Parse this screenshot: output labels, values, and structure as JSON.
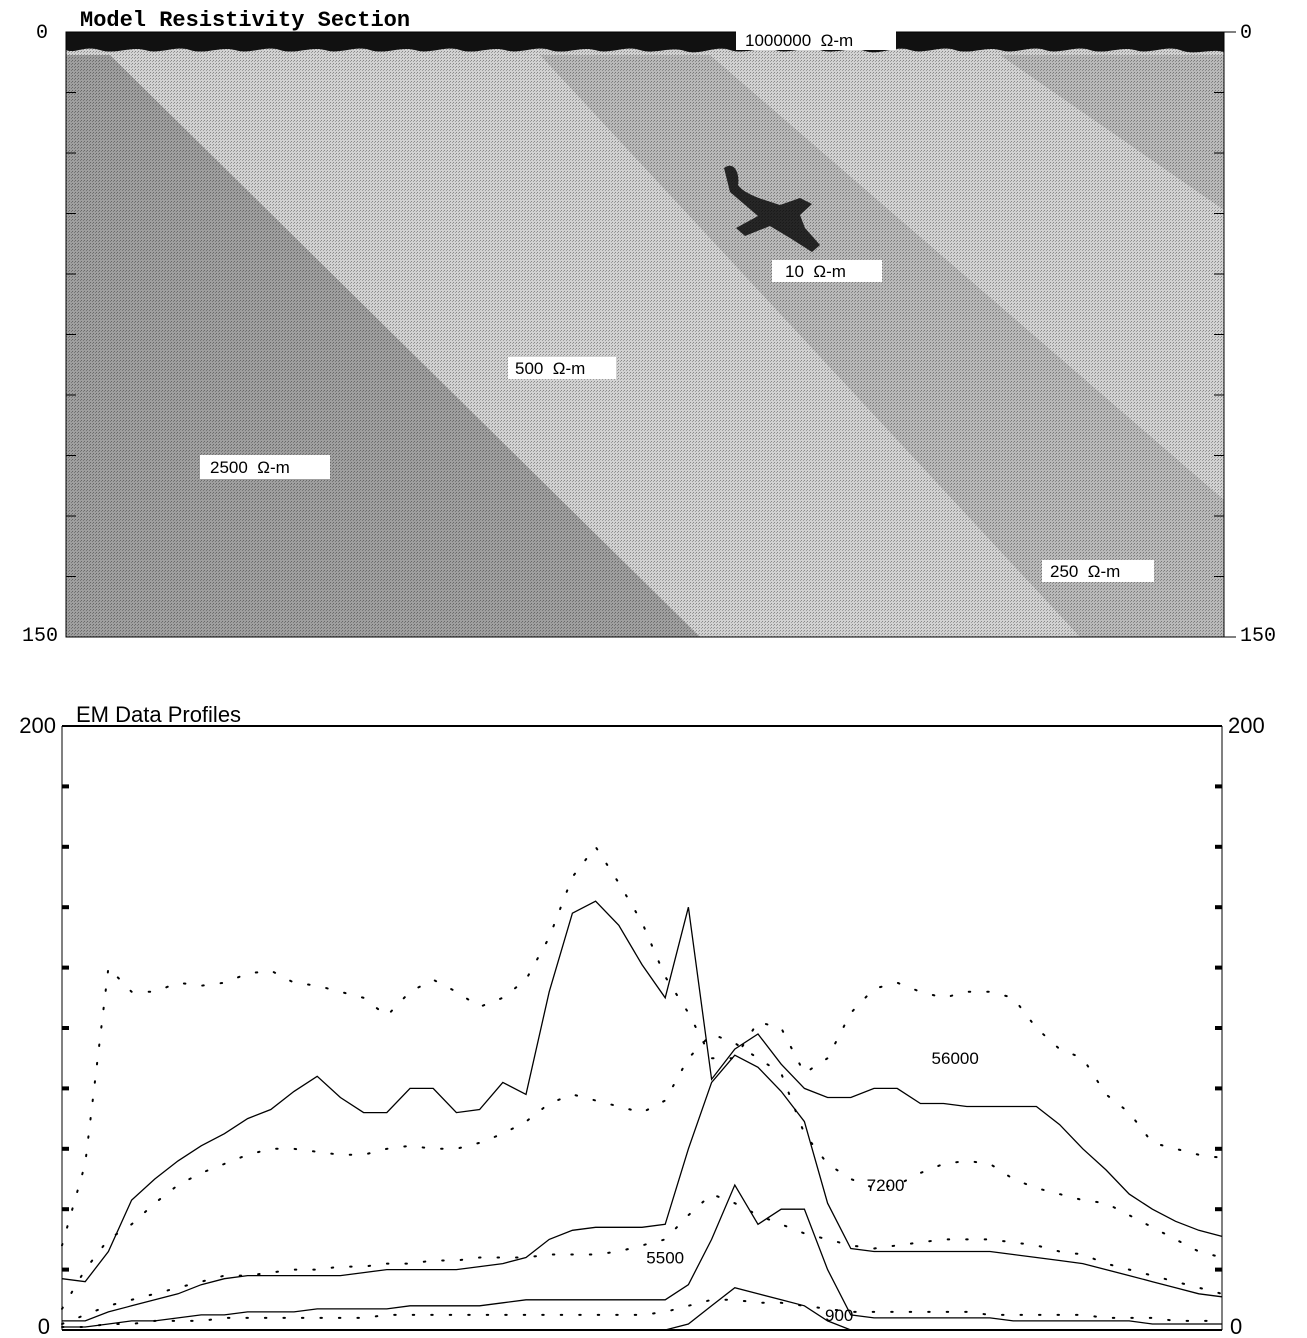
{
  "chart_data": [
    {
      "type": "heatmap",
      "title": "Model Resistivity Section",
      "ylim": [
        0,
        150
      ],
      "y_axis_label_top": "0",
      "y_axis_label_bottom": "150",
      "units": "Ω-m",
      "grid": false,
      "regions": [
        {
          "name": "air",
          "resistivity": 1000000,
          "label": "1000000  Ω-m",
          "color": "#111111"
        },
        {
          "name": "host-500",
          "resistivity": 500,
          "label": "500  Ω-m",
          "color": "#d2d2d2"
        },
        {
          "name": "block-2500",
          "resistivity": 2500,
          "label": "2500  Ω-m",
          "color": "#9f9f9f"
        },
        {
          "name": "zone-250",
          "resistivity": 250,
          "label": "250  Ω-m",
          "color": "#b9b9b9"
        },
        {
          "name": "conductor-10",
          "resistivity": 10,
          "label": "10  Ω-m",
          "color": "#262626"
        }
      ]
    },
    {
      "type": "line",
      "title": "EM Data Profiles",
      "ylim": [
        0,
        200
      ],
      "y_axis_label_top": "200",
      "y_axis_label_bottom": "0",
      "grid": false,
      "x": [
        0,
        2,
        4,
        6,
        8,
        10,
        12,
        14,
        16,
        18,
        20,
        22,
        24,
        26,
        28,
        30,
        32,
        34,
        36,
        38,
        40,
        42,
        44,
        46,
        48,
        50,
        52,
        54,
        56,
        58,
        60,
        62,
        64,
        66,
        68,
        70,
        72,
        74,
        76,
        78,
        80,
        82,
        84,
        86,
        88,
        90,
        92,
        94,
        96,
        98,
        100
      ],
      "series": [
        {
          "name": "56000",
          "style": "solid",
          "values": [
            17,
            16,
            26,
            43,
            50,
            56,
            61,
            65,
            70,
            73,
            79,
            84,
            77,
            72,
            72,
            80,
            80,
            72,
            73,
            82,
            78,
            112,
            138,
            142,
            134,
            121,
            110,
            140,
            83,
            93,
            98,
            88,
            80,
            77,
            77,
            80,
            80,
            75,
            75,
            74,
            74,
            74,
            74,
            68,
            60,
            53,
            45,
            40,
            36,
            33,
            31
          ]
        },
        {
          "name": "56000",
          "style": "dotted",
          "values": [
            28,
            55,
            120,
            112,
            112,
            115,
            114,
            115,
            118,
            119,
            115,
            114,
            112,
            110,
            104,
            112,
            116,
            112,
            107,
            110,
            116,
            130,
            150,
            160,
            148,
            135,
            117,
            105,
            90,
            90,
            102,
            100,
            85,
            90,
            105,
            113,
            115,
            112,
            110,
            112,
            112,
            110,
            100,
            93,
            90,
            78,
            72,
            62,
            60,
            58,
            57
          ]
        },
        {
          "name": "7200",
          "style": "solid",
          "values": [
            3,
            3,
            6,
            8,
            10,
            12,
            15,
            17,
            18,
            18,
            18,
            18,
            18,
            19,
            20,
            20,
            20,
            20,
            21,
            22,
            24,
            30,
            33,
            34,
            34,
            34,
            35,
            60,
            82,
            91,
            87,
            79,
            69,
            42,
            27,
            26,
            26,
            26,
            26,
            26,
            26,
            25,
            24,
            23,
            22,
            20,
            18,
            16,
            14,
            12,
            11
          ]
        },
        {
          "name": "7200",
          "style": "dotted",
          "values": [
            7,
            20,
            30,
            35,
            42,
            48,
            52,
            55,
            58,
            60,
            60,
            59,
            58,
            58,
            60,
            61,
            60,
            60,
            62,
            65,
            69,
            75,
            78,
            76,
            74,
            72,
            76,
            90,
            98,
            95,
            90,
            85,
            65,
            55,
            50,
            47,
            48,
            52,
            55,
            56,
            55,
            50,
            47,
            45,
            43,
            42,
            38,
            34,
            30,
            26,
            24
          ]
        },
        {
          "name": "5500",
          "style": "solid",
          "values": [
            1,
            1,
            2,
            3,
            3,
            4,
            5,
            5,
            6,
            6,
            6,
            7,
            7,
            7,
            7,
            8,
            8,
            8,
            8,
            9,
            10,
            10,
            10,
            10,
            10,
            10,
            10,
            15,
            30,
            48,
            35,
            40,
            40,
            20,
            5,
            4,
            4,
            4,
            4,
            4,
            4,
            3,
            3,
            3,
            3,
            3,
            3,
            2,
            2,
            2,
            2
          ]
        },
        {
          "name": "5500",
          "style": "dotted",
          "values": [
            2,
            5,
            8,
            10,
            12,
            14,
            16,
            18,
            18,
            19,
            20,
            20,
            21,
            21,
            22,
            22,
            23,
            23,
            24,
            24,
            24,
            25,
            25,
            25,
            26,
            28,
            30,
            38,
            45,
            42,
            38,
            35,
            32,
            30,
            28,
            27,
            28,
            29,
            30,
            30,
            30,
            29,
            28,
            26,
            25,
            22,
            20,
            18,
            16,
            14,
            12
          ]
        },
        {
          "name": "900",
          "style": "solid",
          "values": [
            0,
            0,
            0,
            0,
            0,
            0,
            0,
            0,
            0,
            0,
            0,
            0,
            0,
            0,
            0,
            0,
            0,
            0,
            0,
            0,
            0,
            0,
            0,
            0,
            0,
            0,
            0,
            2,
            8,
            14,
            12,
            10,
            8,
            3,
            0,
            0,
            0,
            0,
            0,
            0,
            0,
            0,
            0,
            0,
            0,
            0,
            0,
            0,
            0,
            0,
            0
          ]
        },
        {
          "name": "900",
          "style": "dotted",
          "values": [
            1,
            1,
            2,
            2,
            3,
            3,
            3,
            4,
            4,
            4,
            4,
            4,
            4,
            4,
            5,
            5,
            5,
            5,
            5,
            5,
            5,
            5,
            5,
            5,
            5,
            5,
            6,
            8,
            10,
            10,
            9,
            9,
            8,
            7,
            6,
            6,
            6,
            6,
            6,
            6,
            5,
            5,
            5,
            5,
            5,
            4,
            4,
            4,
            3,
            3,
            3
          ]
        }
      ],
      "annotations": [
        {
          "text": "56000",
          "x": 77,
          "y": 88
        },
        {
          "text": "7200",
          "x": 71,
          "y": 46
        },
        {
          "text": "5500",
          "x": 52,
          "y": 22
        },
        {
          "text": "900",
          "x": 67,
          "y": 3
        }
      ]
    }
  ]
}
